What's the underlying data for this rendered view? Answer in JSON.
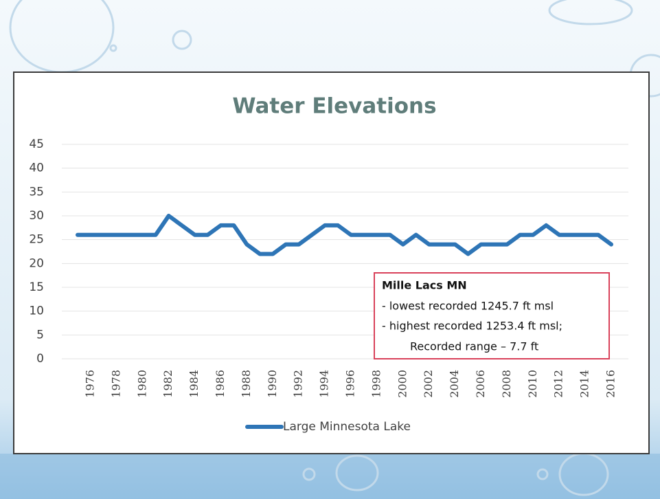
{
  "chart_data": {
    "type": "line",
    "title": "Water Elevations",
    "categories": [
      null,
      "1976",
      null,
      "1978",
      null,
      "1980",
      null,
      "1982",
      null,
      "1984",
      null,
      "1986",
      null,
      "1988",
      null,
      "1990",
      null,
      "1992",
      null,
      "1994",
      null,
      "1996",
      null,
      "1998",
      null,
      "2000",
      null,
      "2002",
      null,
      "2004",
      null,
      "2006",
      null,
      "2008",
      null,
      "2010",
      null,
      "2012",
      null,
      "2014",
      null,
      "2016"
    ],
    "series": [
      {
        "name": "Large Minnesota Lake",
        "color": "#2e75b6",
        "values": [
          26,
          26,
          26,
          26,
          26,
          26,
          26,
          30,
          28,
          26,
          26,
          28,
          28,
          24,
          22,
          22,
          24,
          24,
          26,
          28,
          28,
          26,
          26,
          26,
          26,
          24,
          26,
          24,
          24,
          24,
          22,
          24,
          24,
          24,
          26,
          26,
          28,
          26,
          26,
          26,
          26,
          24
        ]
      }
    ],
    "ylim": [
      0,
      45
    ],
    "yticks": [
      0,
      5,
      10,
      15,
      20,
      25,
      30,
      35,
      40,
      45
    ],
    "grid": true,
    "legend": "bottom",
    "annotation": [
      "Mille Lacs MN",
      "- lowest recorded 1245.7 ft msl",
      "- highest recorded 1253.4 ft msl;",
      "Recorded range – 7.7 ft"
    ]
  }
}
